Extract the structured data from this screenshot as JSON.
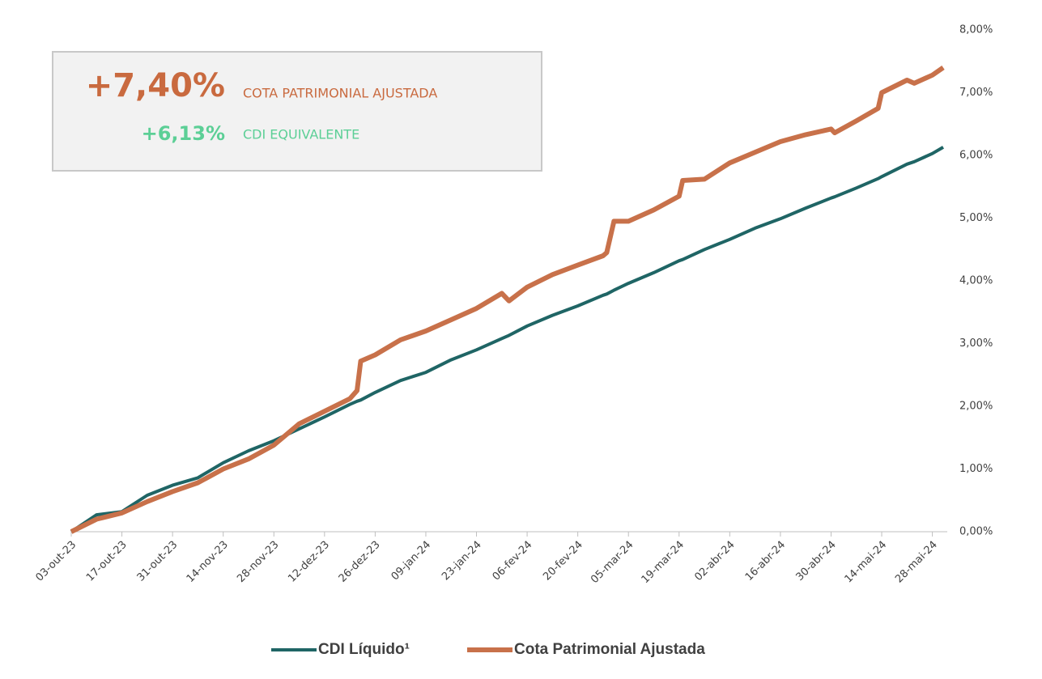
{
  "chart_data": {
    "type": "line",
    "x": [
      "2023-10-03",
      "2023-10-10",
      "2023-10-17",
      "2023-10-24",
      "2023-10-31",
      "2023-11-07",
      "2023-11-14",
      "2023-11-21",
      "2023-11-28",
      "2023-12-05",
      "2023-12-12",
      "2023-12-19",
      "2023-12-21",
      "2023-12-22",
      "2023-12-26",
      "2024-01-02",
      "2024-01-09",
      "2024-01-16",
      "2024-01-23",
      "2024-01-30",
      "2024-02-01",
      "2024-02-06",
      "2024-02-13",
      "2024-02-20",
      "2024-02-27",
      "2024-02-28",
      "2024-03-01",
      "2024-03-05",
      "2024-03-12",
      "2024-03-19",
      "2024-03-20",
      "2024-03-26",
      "2024-04-02",
      "2024-04-09",
      "2024-04-16",
      "2024-04-23",
      "2024-04-30",
      "2024-05-01",
      "2024-05-07",
      "2024-05-13",
      "2024-05-14",
      "2024-05-21",
      "2024-05-23",
      "2024-05-28",
      "2024-05-31"
    ],
    "series": [
      {
        "name": "CDI Líquido¹",
        "color": "#1f6565",
        "values": [
          0,
          0.27,
          0.32,
          0.58,
          0.74,
          0.86,
          1.1,
          1.29,
          1.45,
          1.64,
          1.83,
          2.03,
          2.08,
          2.1,
          2.22,
          2.41,
          2.54,
          2.74,
          2.9,
          3.08,
          3.13,
          3.28,
          3.45,
          3.6,
          3.77,
          3.79,
          3.85,
          3.96,
          4.13,
          4.32,
          4.34,
          4.5,
          4.66,
          4.84,
          4.99,
          5.16,
          5.32,
          5.34,
          5.48,
          5.63,
          5.66,
          5.86,
          5.9,
          6.03,
          6.13
        ]
      },
      {
        "name": "Cota Patrimonial Ajustada",
        "color": "#c8714a",
        "values": [
          0,
          0.2,
          0.3,
          0.48,
          0.64,
          0.78,
          1.0,
          1.16,
          1.38,
          1.72,
          1.92,
          2.12,
          2.25,
          2.72,
          2.82,
          3.06,
          3.2,
          3.38,
          3.56,
          3.8,
          3.68,
          3.9,
          4.1,
          4.25,
          4.4,
          4.45,
          4.95,
          4.95,
          5.13,
          5.35,
          5.6,
          5.62,
          5.88,
          6.05,
          6.22,
          6.33,
          6.42,
          6.36,
          6.55,
          6.75,
          7.0,
          7.2,
          7.15,
          7.28,
          7.4
        ]
      }
    ],
    "xlim": [
      "2023-10-03",
      "2024-05-31"
    ],
    "xticks": [
      {
        "value": "2023-10-03",
        "label": "03-out-23"
      },
      {
        "value": "2023-10-17",
        "label": "17-out-23"
      },
      {
        "value": "2023-10-31",
        "label": "31-out-23"
      },
      {
        "value": "2023-11-14",
        "label": "14-nov-23"
      },
      {
        "value": "2023-11-28",
        "label": "28-nov-23"
      },
      {
        "value": "2023-12-12",
        "label": "12-dez-23"
      },
      {
        "value": "2023-12-26",
        "label": "26-dez-23"
      },
      {
        "value": "2024-01-09",
        "label": "09-jan-24"
      },
      {
        "value": "2024-01-23",
        "label": "23-jan-24"
      },
      {
        "value": "2024-02-06",
        "label": "06-fev-24"
      },
      {
        "value": "2024-02-20",
        "label": "20-fev-24"
      },
      {
        "value": "2024-03-05",
        "label": "05-mar-24"
      },
      {
        "value": "2024-03-19",
        "label": "19-mar-24"
      },
      {
        "value": "2024-04-02",
        "label": "02-abr-24"
      },
      {
        "value": "2024-04-16",
        "label": "16-abr-24"
      },
      {
        "value": "2024-04-30",
        "label": "30-abr-24"
      },
      {
        "value": "2024-05-14",
        "label": "14-mai-24"
      },
      {
        "value": "2024-05-28",
        "label": "28-mai-24"
      }
    ],
    "ylim": [
      0,
      8
    ],
    "yticks": [
      {
        "value": 0,
        "label": "0,00%"
      },
      {
        "value": 1,
        "label": "1,00%"
      },
      {
        "value": 2,
        "label": "2,00%"
      },
      {
        "value": 3,
        "label": "3,00%"
      },
      {
        "value": 4,
        "label": "4,00%"
      },
      {
        "value": 5,
        "label": "5,00%"
      },
      {
        "value": 6,
        "label": "6,00%"
      },
      {
        "value": 7,
        "label": "7,00%"
      },
      {
        "value": 8,
        "label": "8,00%"
      }
    ],
    "y_axis_side": "right",
    "legend": "bottom",
    "annotations": [
      {
        "value": 7.4,
        "value_label": "+7,40%",
        "text": "COTA PATRIMONIAL AJUSTADA",
        "color": "#c96a3f"
      },
      {
        "value": 6.13,
        "value_label": "+6,13%",
        "text": "CDI EQUIVALENTE",
        "color": "#5ccf96"
      }
    ]
  }
}
